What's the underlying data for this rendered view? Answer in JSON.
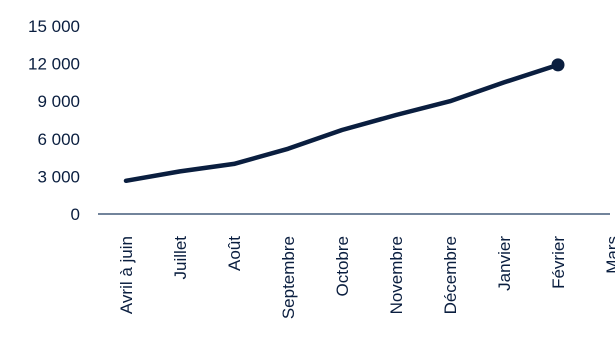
{
  "chart_data": {
    "type": "line",
    "categories": [
      "Avril à juin",
      "Juillet",
      "Août",
      "Septembre",
      "Octobre",
      "Novembre",
      "Décembre",
      "Janvier",
      "Février",
      "Mars"
    ],
    "series": [
      {
        "values": [
          2650,
          3400,
          4000,
          5200,
          6700,
          7900,
          9000,
          10500,
          11900,
          null
        ]
      }
    ],
    "ylim": [
      0,
      15000
    ],
    "yticks": [
      0,
      3000,
      6000,
      9000,
      12000,
      15000
    ],
    "ytick_labels": [
      "0",
      "3 000",
      "6 000",
      "9 000",
      "12 000",
      "15 000"
    ],
    "title": "",
    "xlabel": "",
    "ylabel": "",
    "grid": false,
    "legend": "none",
    "end_marker": true,
    "colors": {
      "line": "#0a1e3f",
      "axis": "#1f3a5f",
      "text": "#0a1e3f"
    }
  }
}
